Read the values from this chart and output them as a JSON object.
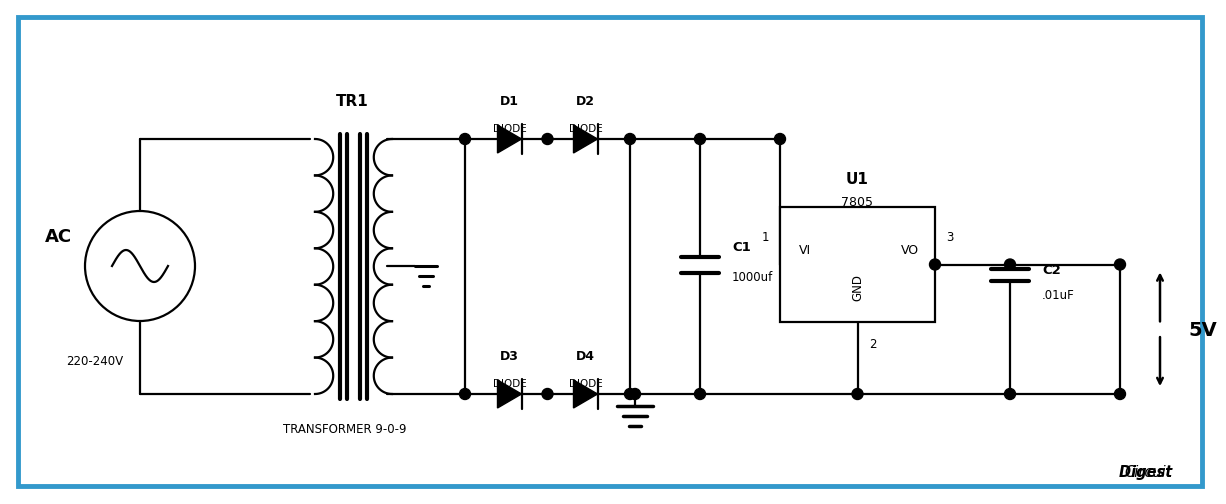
{
  "bg_color": "#ffffff",
  "line_color": "#000000",
  "border_color": "#3399cc",
  "watermark_circuit": "Circuit",
  "watermark_digest": "Digest",
  "ac_label": "AC",
  "ac_voltage": "220-240V",
  "tr1_label": "TR1",
  "transformer_label": "TRANSFORMER 9-0-9",
  "d1_label": "D1",
  "d2_label": "D2",
  "d3_label": "D3",
  "d4_label": "D4",
  "diode_label": "DIODE",
  "u1_label": "U1",
  "u1_sub": "7805",
  "vi_label": "VI",
  "vo_label": "VO",
  "gnd_label": "GND",
  "c1_label": "C1",
  "c1_sub": "1000uf",
  "c2_label": "C2",
  "c2_sub": ".01uF",
  "pin1": "1",
  "pin2": "2",
  "pin3": "3",
  "v5_label": "5V"
}
